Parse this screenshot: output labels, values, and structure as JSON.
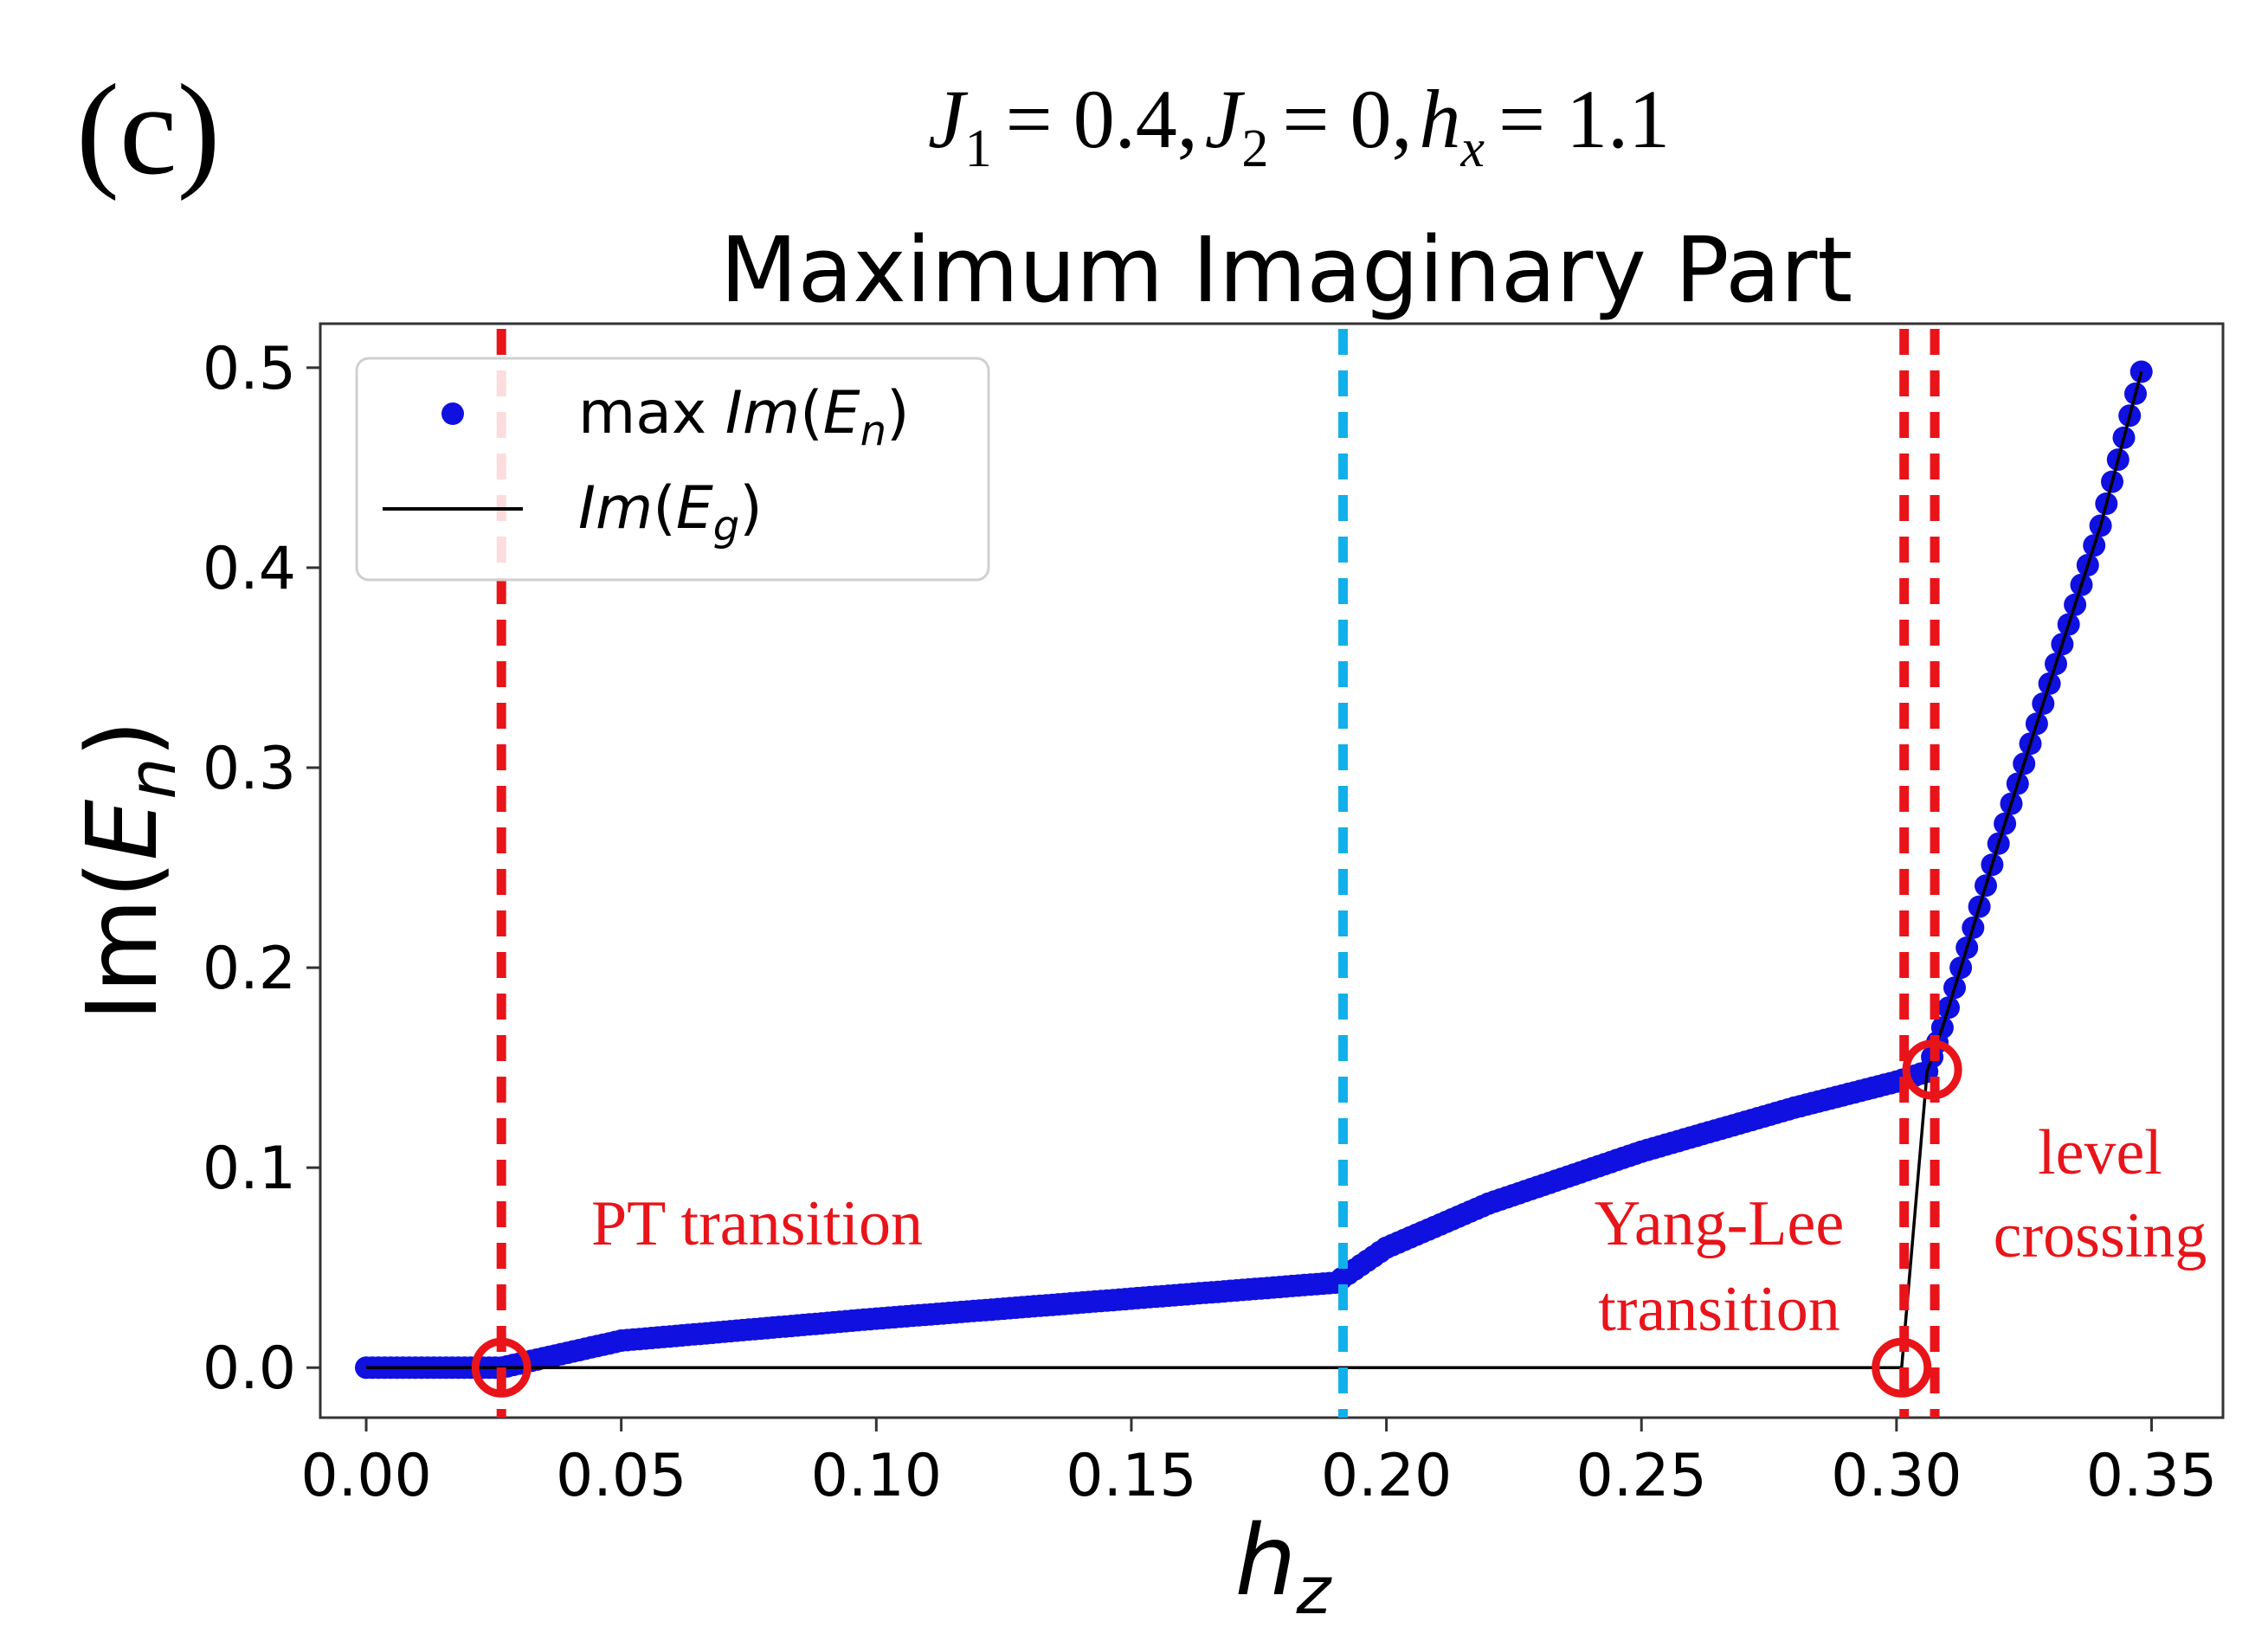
{
  "panel_label": "(c)",
  "params": {
    "J1_sym": "J",
    "J1_sub": "1",
    "J1_val": "= 0.4,",
    "J2_sym": "J",
    "J2_sub": "2",
    "J2_val": "= 0,",
    "hx_sym": "h",
    "hx_sub": "x",
    "hx_val": "= 1.1"
  },
  "colors": {
    "scatter": "#1010e0",
    "ground": "#000000",
    "transition_red": "#e8141a",
    "transition_blue": "#12b0ea",
    "frame": "#333333"
  },
  "chart_data": {
    "type": "scatter",
    "title": "Maximum Imaginary Part",
    "xlabel_main": "h",
    "xlabel_sub": "z",
    "ylabel_main": "Im(",
    "ylabel_var": "E",
    "ylabel_sub": "n",
    "ylabel_close": ")",
    "xlim": [
      -0.009,
      0.364
    ],
    "ylim": [
      -0.025,
      0.522
    ],
    "xticks": [
      0.0,
      0.05,
      0.1,
      0.15,
      0.2,
      0.25,
      0.3,
      0.35
    ],
    "xtick_labels": [
      "0.00",
      "0.05",
      "0.10",
      "0.15",
      "0.20",
      "0.25",
      "0.30",
      "0.35"
    ],
    "yticks": [
      0.0,
      0.1,
      0.2,
      0.3,
      0.4,
      0.5
    ],
    "ytick_labels": [
      "0.0",
      "0.1",
      "0.2",
      "0.3",
      "0.4",
      "0.5"
    ],
    "legend": {
      "position": "upper-left",
      "entries": [
        {
          "kind": "marker",
          "prefix": "max ",
          "var": "Im",
          "open": "(",
          "E": "E",
          "sub": "n",
          "close": ")"
        },
        {
          "kind": "line",
          "prefix": "",
          "var": "Im",
          "open": "(",
          "E": "E",
          "sub": "g",
          "close": ")"
        }
      ]
    },
    "series": [
      {
        "name": "max Im(E_n)",
        "style": "markers",
        "points": [
          [
            0.0,
            0.0
          ],
          [
            0.0265,
            0.0
          ],
          [
            0.05,
            0.0135
          ],
          [
            0.1,
            0.0245
          ],
          [
            0.15,
            0.0345
          ],
          [
            0.19,
            0.0425
          ],
          [
            0.2,
            0.06
          ],
          [
            0.22,
            0.082
          ],
          [
            0.25,
            0.108
          ],
          [
            0.28,
            0.13
          ],
          [
            0.3,
            0.143
          ],
          [
            0.306,
            0.148
          ],
          [
            0.309,
            0.17
          ],
          [
            0.315,
            0.22
          ],
          [
            0.32,
            0.262
          ],
          [
            0.33,
            0.342
          ],
          [
            0.34,
            0.421
          ],
          [
            0.348,
            0.498
          ]
        ]
      },
      {
        "name": "Im(E_g)",
        "style": "line",
        "points": [
          [
            0.0,
            0.0
          ],
          [
            0.301,
            0.0
          ],
          [
            0.306,
            0.148
          ],
          [
            0.309,
            0.17
          ],
          [
            0.315,
            0.22
          ],
          [
            0.32,
            0.262
          ],
          [
            0.33,
            0.342
          ],
          [
            0.34,
            0.421
          ],
          [
            0.348,
            0.498
          ]
        ]
      }
    ],
    "vlines": [
      {
        "x": 0.0265,
        "color": "red",
        "name": "pt-transition-line"
      },
      {
        "x": 0.1915,
        "color": "blue",
        "name": "cyan-transition-line"
      },
      {
        "x": 0.3015,
        "color": "red",
        "name": "yang-lee-transition-line"
      },
      {
        "x": 0.3075,
        "color": "red",
        "name": "level-crossing-line"
      }
    ],
    "circles": [
      {
        "x": 0.0265,
        "y": 0.0,
        "name": "pt-transition-marker"
      },
      {
        "x": 0.301,
        "y": 0.0,
        "name": "yang-lee-marker"
      },
      {
        "x": 0.307,
        "y": 0.149,
        "name": "level-crossing-marker"
      }
    ],
    "annotations": {
      "pt": "PT transition",
      "yl1": "Yang-Lee",
      "yl2": "transition",
      "lc1": "level",
      "lc2": "crossing"
    }
  }
}
